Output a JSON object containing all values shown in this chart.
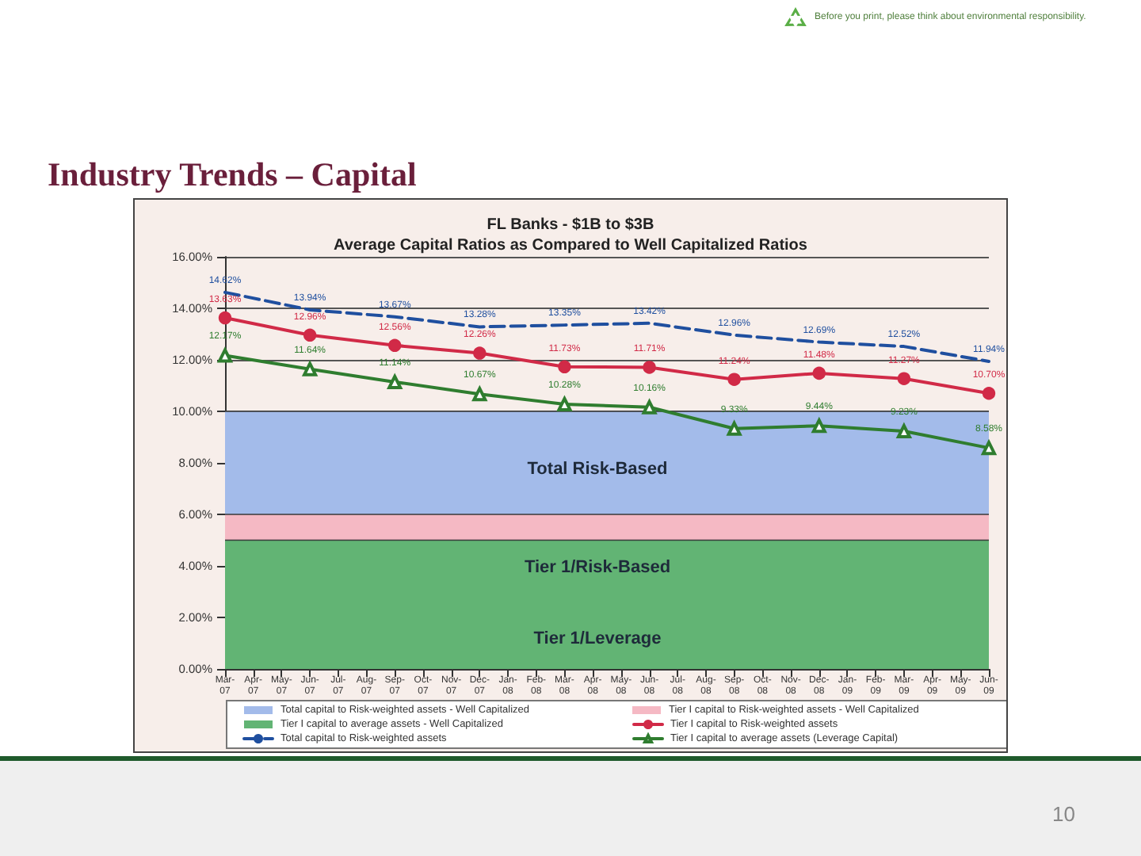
{
  "chart_data": {
    "type": "line",
    "title": "FL Banks - $1B to $3B",
    "subtitle": "Average Capital Ratios as Compared to Well Capitalized Ratios",
    "categories": [
      "Mar-07",
      "Apr-07",
      "May-07",
      "Jun-07",
      "Jul-07",
      "Aug-07",
      "Sep-07",
      "Oct-07",
      "Nov-07",
      "Dec-07",
      "Jan-08",
      "Feb-08",
      "Mar-08",
      "Apr-08",
      "May-08",
      "Jun-08",
      "Jul-08",
      "Aug-08",
      "Sep-08",
      "Oct-08",
      "Nov-08",
      "Dec-08",
      "Jan-09",
      "Feb-09",
      "Mar-09",
      "Apr-09",
      "May-09",
      "Jun-09"
    ],
    "ylim": [
      0,
      16
    ],
    "yticks": [
      {
        "value": 0,
        "label": "0.00%"
      },
      {
        "value": 2,
        "label": "2.00%"
      },
      {
        "value": 4,
        "label": "4.00%"
      },
      {
        "value": 6,
        "label": "6.00%"
      },
      {
        "value": 8,
        "label": "8.00%"
      },
      {
        "value": 10,
        "label": "10.00%"
      },
      {
        "value": 12,
        "label": "12.00%"
      },
      {
        "value": 14,
        "label": "14.00%"
      },
      {
        "value": 16,
        "label": "16.00%"
      }
    ],
    "grid": "y",
    "legend": "bottom",
    "series": [
      {
        "name": "Total capital to Risk-weighted assets - Well Capitalized",
        "type": "area",
        "color": "#a3bbea",
        "values": [
          10,
          10,
          10,
          10,
          10,
          10,
          10,
          10,
          10,
          10,
          10,
          10,
          10,
          10,
          10,
          10,
          10,
          10,
          10,
          10,
          10,
          10,
          10,
          10,
          10,
          10,
          10,
          10
        ]
      },
      {
        "name": "Tier I capital to Risk-weighted assets - Well Capitalized",
        "type": "area",
        "color": "#f5b9c4",
        "values": [
          6,
          6,
          6,
          6,
          6,
          6,
          6,
          6,
          6,
          6,
          6,
          6,
          6,
          6,
          6,
          6,
          6,
          6,
          6,
          6,
          6,
          6,
          6,
          6,
          6,
          6,
          6,
          6
        ]
      },
      {
        "name": "Tier I capital to average assets - Well Capitalized",
        "type": "area",
        "color": "#62b474",
        "values": [
          5,
          5,
          5,
          5,
          5,
          5,
          5,
          5,
          5,
          5,
          5,
          5,
          5,
          5,
          5,
          5,
          5,
          5,
          5,
          5,
          5,
          5,
          5,
          5,
          5,
          5,
          5,
          5
        ]
      },
      {
        "name": "Tier I capital to Risk-weighted assets",
        "color": "#d12a47",
        "marker": "circle",
        "line_style": "solid",
        "x": [
          "Mar-07",
          "Jun-07",
          "Sep-07",
          "Dec-07",
          "Mar-08",
          "Jun-08",
          "Sep-08",
          "Dec-08",
          "Mar-09",
          "Jun-09"
        ],
        "values": [
          13.63,
          12.96,
          12.56,
          12.26,
          11.73,
          11.71,
          11.24,
          11.48,
          11.27,
          10.7
        ],
        "value_labels": [
          "13.63%",
          "12.96%",
          "12.56%",
          "12.26%",
          "11.73%",
          "11.71%",
          "11.24%",
          "11.48%",
          "11.27%",
          "10.70%"
        ]
      },
      {
        "name": "Total capital to Risk-weighted assets",
        "color": "#1f4f9f",
        "marker": "none",
        "line_style": "dashed",
        "x": [
          "Mar-07",
          "Jun-07",
          "Sep-07",
          "Dec-07",
          "Mar-08",
          "Jun-08",
          "Sep-08",
          "Dec-08",
          "Mar-09",
          "Jun-09"
        ],
        "values": [
          14.62,
          13.94,
          13.67,
          13.28,
          13.35,
          13.42,
          12.96,
          12.69,
          12.52,
          11.94
        ],
        "value_labels": [
          "14.62%",
          "13.94%",
          "13.67%",
          "13.28%",
          "13.35%",
          "13.42%",
          "12.96%",
          "12.69%",
          "12.52%",
          "11.94%"
        ]
      },
      {
        "name": "Tier I capital to average assets (Leverage Capital)",
        "color": "#2f7d2f",
        "marker": "triangle",
        "line_style": "solid",
        "x": [
          "Mar-07",
          "Jun-07",
          "Sep-07",
          "Dec-07",
          "Mar-08",
          "Jun-08",
          "Sep-08",
          "Dec-08",
          "Mar-09",
          "Jun-09"
        ],
        "values": [
          12.17,
          11.64,
          11.14,
          10.67,
          10.28,
          10.16,
          9.33,
          9.44,
          9.23,
          8.58
        ],
        "value_labels": [
          "12.17%",
          "11.64%",
          "11.14%",
          "10.67%",
          "10.28%",
          "10.16%",
          "9.33%",
          "9.44%",
          "9.23%",
          "8.58%"
        ]
      }
    ],
    "annotations": [
      "Industry Trends – Capital",
      "Before you print, please think about environmental responsibility.",
      "10",
      "Total Risk-Based",
      "Tier 1/Risk-Based",
      "Tier 1/Leverage"
    ]
  }
}
